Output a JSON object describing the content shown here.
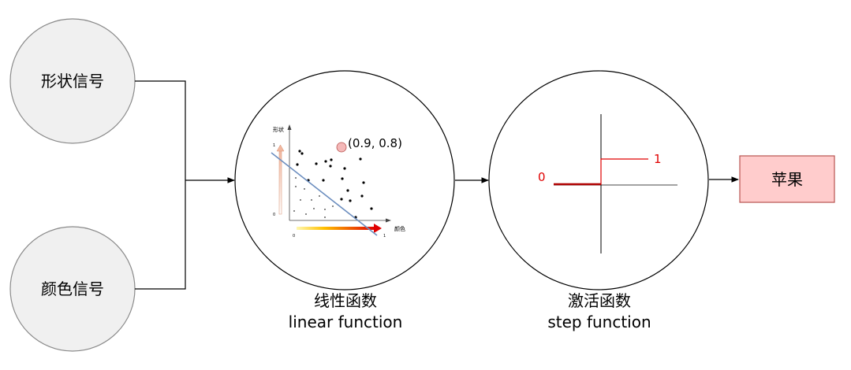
{
  "inputs": {
    "shape_signal": "形状信号",
    "color_signal": "颜色信号"
  },
  "linear": {
    "caption_cn": "线性函数",
    "caption_en": "linear function",
    "point_label": "(0.9, 0.8)",
    "y_axis_label": "形状",
    "x_axis_label": "颜色",
    "y_top_tick": "1",
    "y_bottom_tick": "0",
    "x_left_tick": "0",
    "x_right_tick": "1"
  },
  "activation": {
    "caption_cn": "激活函数",
    "caption_en": "step function",
    "low_label": "0",
    "high_label": "1"
  },
  "output": {
    "label": "苹果"
  },
  "colors": {
    "input_circle_fill": "#f0f0f0",
    "input_circle_stroke": "#8a8a8a",
    "output_fill": "#ffcccc",
    "output_stroke": "#b85450",
    "step_red": "#e00000",
    "fit_line": "#6c8ebf"
  }
}
